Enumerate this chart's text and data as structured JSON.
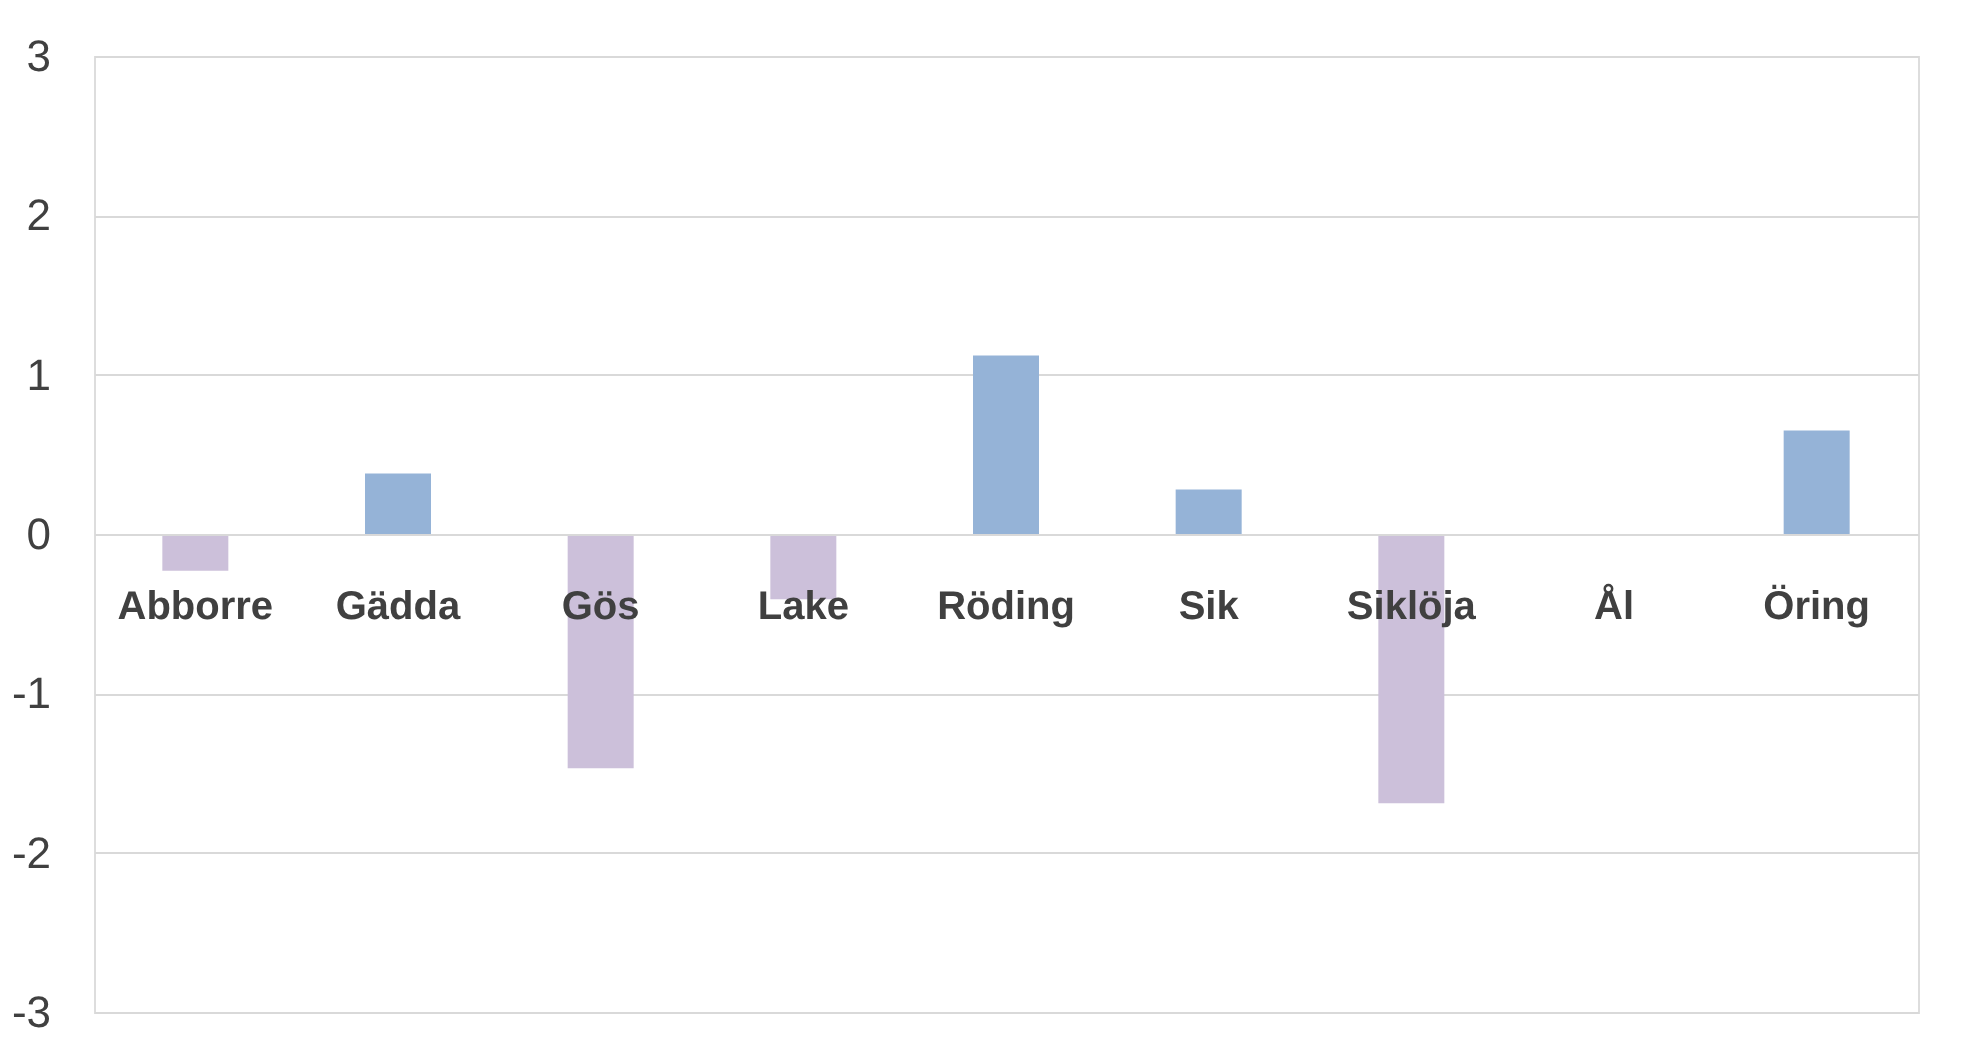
{
  "chart_data": {
    "type": "bar",
    "categories": [
      "Abborre",
      "Gädda",
      "Gös",
      "Lake",
      "Röding",
      "Sik",
      "Siklöja",
      "Ål",
      "Öring"
    ],
    "values": [
      -0.23,
      0.38,
      -1.47,
      -0.41,
      1.12,
      0.28,
      -1.69,
      0,
      0.65
    ],
    "colors": [
      "#ccc0da",
      "#95b3d7",
      "#ccc0da",
      "#ccc0da",
      "#95b3d7",
      "#95b3d7",
      "#ccc0da",
      "#95b3d7",
      "#95b3d7"
    ],
    "ylim": [
      -3,
      3
    ],
    "yticks": [
      -3,
      -2,
      -1,
      0,
      1,
      2,
      3
    ],
    "grid": "y"
  }
}
